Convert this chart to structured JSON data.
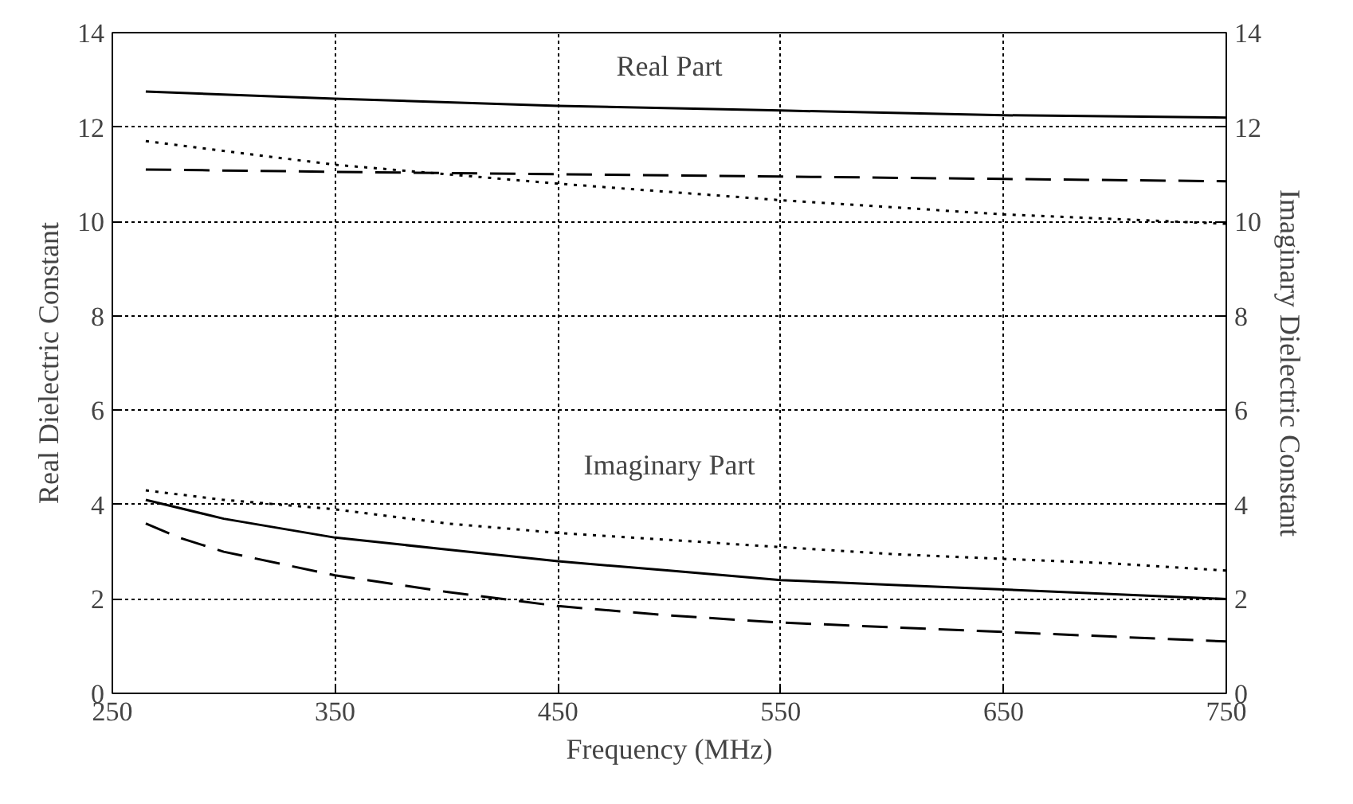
{
  "chart_data": {
    "type": "line",
    "xlabel": "Frequency (MHz)",
    "ylabel": "Real Dielectric Constant",
    "y2label": "Imaginary Dielectric Constant",
    "xlim": [
      250,
      750
    ],
    "xticks": [
      250,
      350,
      450,
      550,
      650,
      750
    ],
    "ylim": [
      0,
      14
    ],
    "yticks": [
      0,
      2,
      4,
      6,
      8,
      10,
      12,
      14
    ],
    "y2lim": [
      0,
      14
    ],
    "y2ticks": [
      0,
      2,
      4,
      6,
      8,
      10,
      12,
      14
    ],
    "grid": true,
    "marker": "none",
    "series": [
      {
        "color": "#000000",
        "line_style": "solid",
        "x": [
          265,
          350,
          450,
          550,
          650,
          750
        ],
        "values": [
          12.75,
          12.6,
          12.45,
          12.35,
          12.25,
          12.2
        ]
      },
      {
        "color": "#000000",
        "line_style": "dotted",
        "x": [
          265,
          350,
          450,
          550,
          650,
          750
        ],
        "values": [
          11.7,
          11.2,
          10.8,
          10.45,
          10.15,
          9.95
        ]
      },
      {
        "color": "#000000",
        "line_style": "dashed",
        "x": [
          265,
          350,
          450,
          550,
          650,
          750
        ],
        "values": [
          11.1,
          11.05,
          11.0,
          10.95,
          10.9,
          10.85
        ]
      },
      {
        "color": "#000000",
        "line_style": "solid",
        "axis": "y2",
        "x": [
          265,
          300,
          350,
          400,
          450,
          500,
          550,
          600,
          650,
          700,
          750
        ],
        "values": [
          4.1,
          3.7,
          3.3,
          3.05,
          2.8,
          2.6,
          2.4,
          2.3,
          2.2,
          2.1,
          2.0
        ]
      },
      {
        "color": "#000000",
        "line_style": "dotted",
        "axis": "y2",
        "x": [
          265,
          300,
          350,
          400,
          450,
          500,
          550,
          600,
          650,
          700,
          750
        ],
        "values": [
          4.3,
          4.1,
          3.9,
          3.6,
          3.4,
          3.25,
          3.1,
          2.95,
          2.85,
          2.75,
          2.6
        ]
      },
      {
        "color": "#000000",
        "line_style": "dashed",
        "axis": "y2",
        "x": [
          265,
          280,
          300,
          350,
          400,
          450,
          500,
          550,
          600,
          650,
          700,
          750
        ],
        "values": [
          3.6,
          3.3,
          3.0,
          2.5,
          2.15,
          1.85,
          1.65,
          1.5,
          1.4,
          1.3,
          1.2,
          1.1
        ]
      }
    ],
    "annotations": [
      "Real Part",
      "Imaginary Part"
    ]
  }
}
